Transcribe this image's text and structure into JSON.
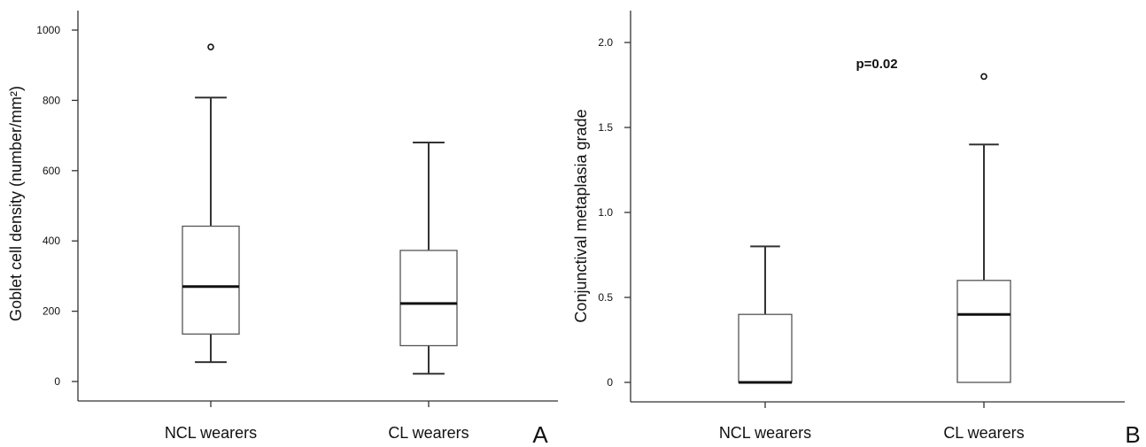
{
  "chart_data": [
    {
      "type": "box",
      "panel_label": "A",
      "ylabel": "Goblet cell density (number/mm²)",
      "ylim": [
        0,
        1000
      ],
      "yticks": [
        0,
        200,
        400,
        600,
        800,
        1000
      ],
      "ytick_labels": [
        "0",
        "200",
        "400",
        "600",
        "800",
        "1000"
      ],
      "categories": [
        "NCL wearers",
        "CL wearers"
      ],
      "boxes": [
        {
          "category": "NCL wearers",
          "whisker_low": 55,
          "q1": 135,
          "median": 270,
          "q3": 442,
          "whisker_high": 808,
          "outliers": [
            952
          ]
        },
        {
          "category": "CL wearers",
          "whisker_low": 22,
          "q1": 102,
          "median": 222,
          "q3": 373,
          "whisker_high": 680,
          "outliers": []
        }
      ],
      "annotation": ""
    },
    {
      "type": "box",
      "panel_label": "B",
      "ylabel": "Conjunctival metaplasia grade",
      "ylim": [
        0,
        2.0
      ],
      "yticks": [
        0,
        0.5,
        1.0,
        1.5,
        2.0
      ],
      "ytick_labels": [
        "0",
        "0.5",
        "1.0",
        "1.5",
        "2.0"
      ],
      "categories": [
        "NCL wearers",
        "CL wearers"
      ],
      "boxes": [
        {
          "category": "NCL wearers",
          "whisker_low": 0,
          "q1": 0,
          "median": 0,
          "q3": 0.4,
          "whisker_high": 0.8,
          "outliers": []
        },
        {
          "category": "CL wearers",
          "whisker_low": 0,
          "q1": 0,
          "median": 0.4,
          "q3": 0.6,
          "whisker_high": 1.4,
          "outliers": [
            1.8
          ]
        }
      ],
      "annotation": "p=0.02"
    }
  ]
}
